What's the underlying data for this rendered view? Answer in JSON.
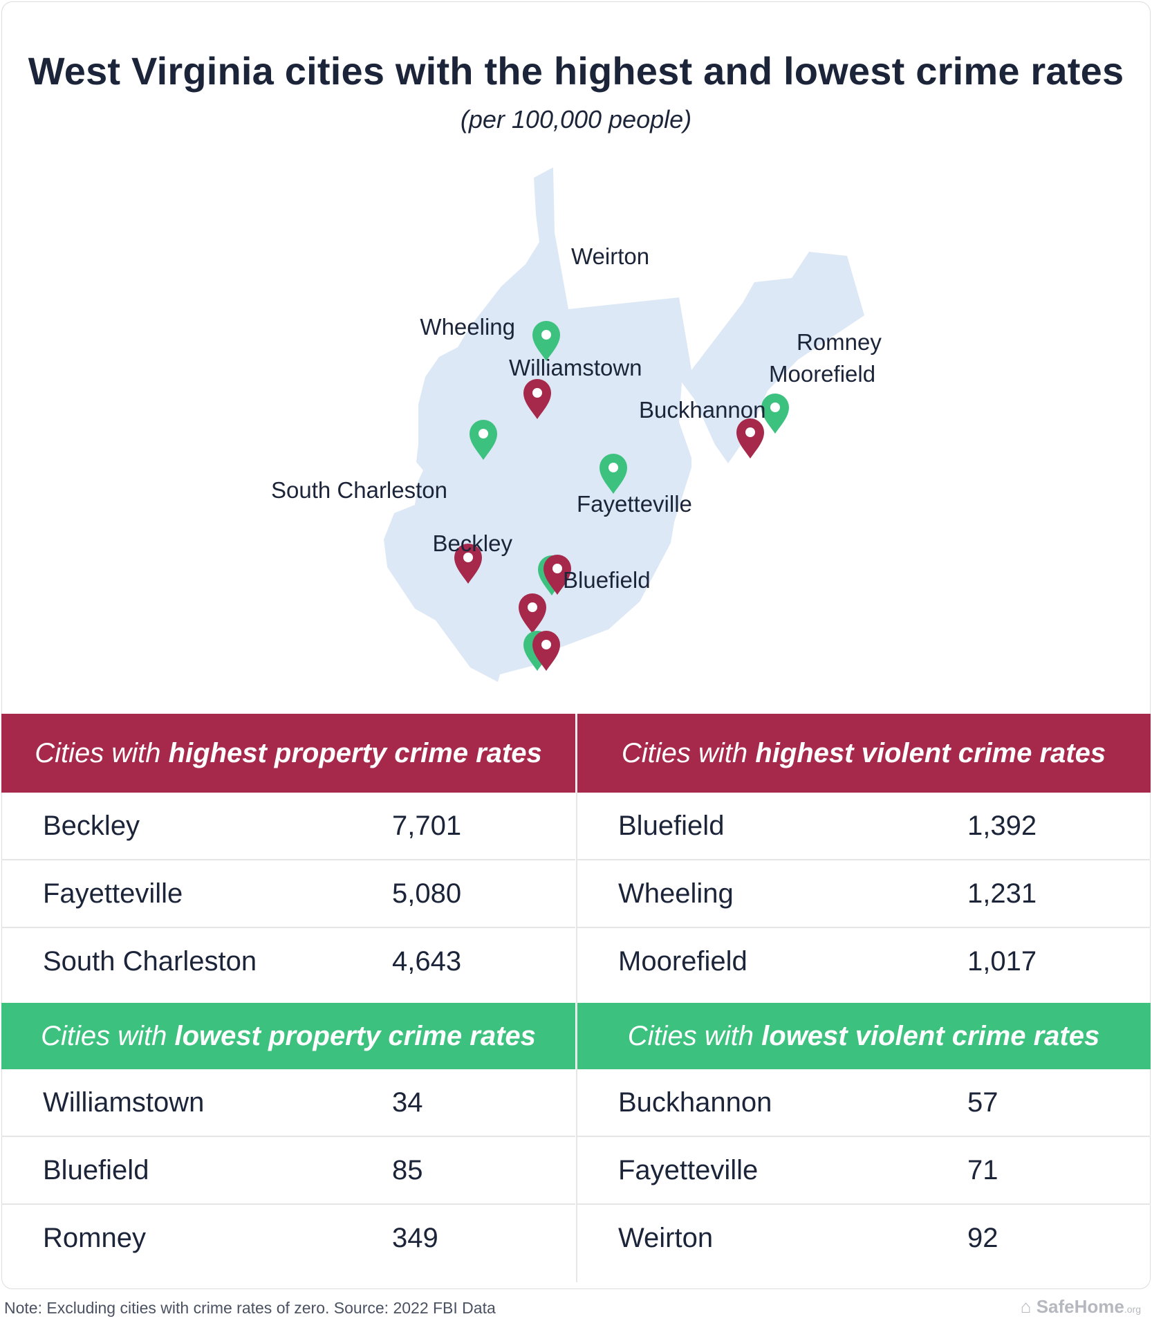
{
  "header": {
    "title": "West Virginia cities with the highest and lowest crime rates",
    "subtitle": "(per 100,000 people)"
  },
  "colors": {
    "high": "#a6294c",
    "low": "#3cc17f",
    "state_fill": "#dce8f5",
    "text": "#1b2438"
  },
  "map": {
    "region": "West Virginia",
    "cities": [
      {
        "name": "Weirton",
        "type": "low"
      },
      {
        "name": "Wheeling",
        "type": "high"
      },
      {
        "name": "Williamstown",
        "type": "low"
      },
      {
        "name": "Romney",
        "type": "low"
      },
      {
        "name": "Moorefield",
        "type": "high"
      },
      {
        "name": "Buckhannon",
        "type": "low"
      },
      {
        "name": "South Charleston",
        "type": "high"
      },
      {
        "name": "Fayetteville",
        "type": "both"
      },
      {
        "name": "Beckley",
        "type": "high"
      },
      {
        "name": "Bluefield",
        "type": "both"
      }
    ]
  },
  "tables": {
    "highest_property": {
      "label_prefix": "Cities with ",
      "label_bold": "highest property crime rates",
      "rows": [
        {
          "city": "Beckley",
          "value": "7,701"
        },
        {
          "city": "Fayetteville",
          "value": "5,080"
        },
        {
          "city": "South Charleston",
          "value": "4,643"
        }
      ]
    },
    "highest_violent": {
      "label_prefix": "Cities with ",
      "label_bold": "highest violent crime rates",
      "rows": [
        {
          "city": "Bluefield",
          "value": "1,392"
        },
        {
          "city": "Wheeling",
          "value": "1,231"
        },
        {
          "city": "Moorefield",
          "value": "1,017"
        }
      ]
    },
    "lowest_property": {
      "label_prefix": "Cities with ",
      "label_bold": "lowest property crime rates",
      "rows": [
        {
          "city": "Williamstown",
          "value": "34"
        },
        {
          "city": "Bluefield",
          "value": "85"
        },
        {
          "city": "Romney",
          "value": "349"
        }
      ]
    },
    "lowest_violent": {
      "label_prefix": "Cities with ",
      "label_bold": "lowest violent crime rates",
      "rows": [
        {
          "city": "Buckhannon",
          "value": "57"
        },
        {
          "city": "Fayetteville",
          "value": "71"
        },
        {
          "city": "Weirton",
          "value": "92"
        }
      ]
    }
  },
  "footer": {
    "note": "Note: Excluding cities with crime rates of zero. Source: 2022 FBI Data",
    "brand": "SafeHome",
    "brand_suffix": ".org"
  }
}
